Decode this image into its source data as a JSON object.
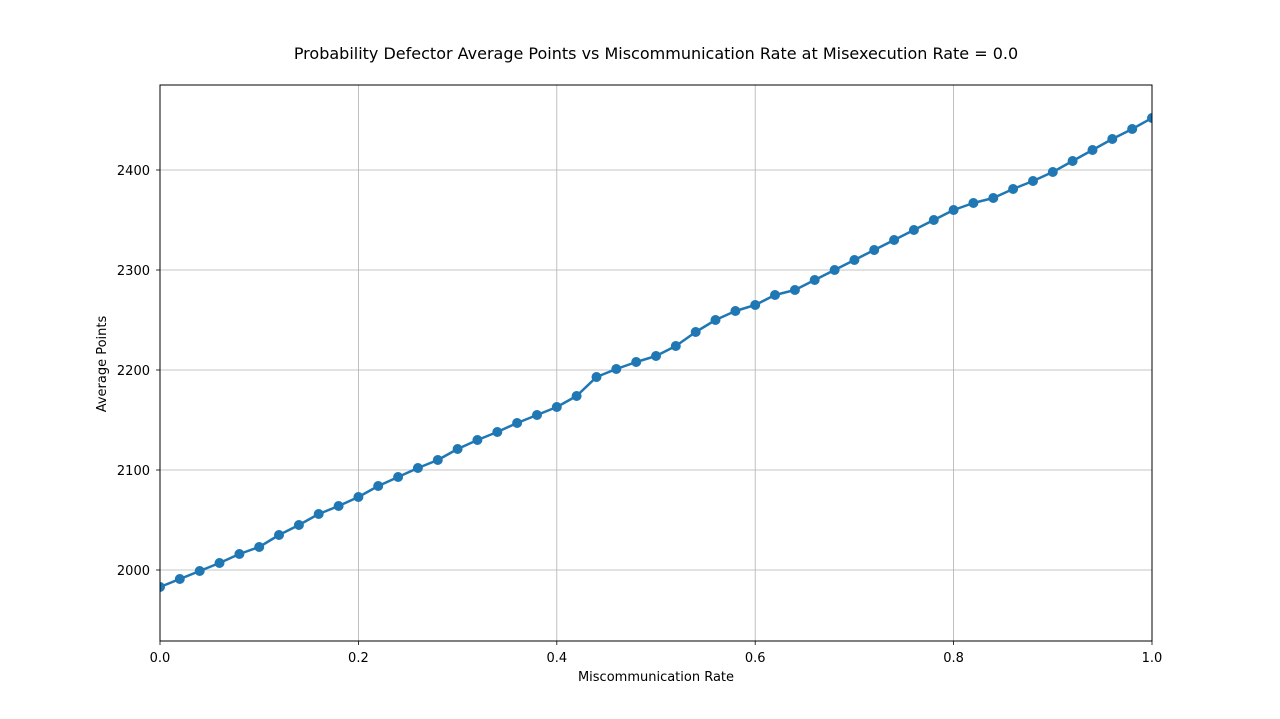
{
  "chart_data": {
    "type": "line",
    "title": "Probability Defector Average Points vs Miscommunication Rate at Misexecution Rate = 0.0",
    "xlabel": "Miscommunication Rate",
    "ylabel": "Average Points",
    "xlim": [
      0.0,
      1.0
    ],
    "ylim": [
      1929,
      2485
    ],
    "xticks": [
      0.0,
      0.2,
      0.4,
      0.6,
      0.8,
      1.0
    ],
    "xtick_labels": [
      "0.0",
      "0.2",
      "0.4",
      "0.6",
      "0.8",
      "1.0"
    ],
    "yticks": [
      2000,
      2100,
      2200,
      2300,
      2400
    ],
    "ytick_labels": [
      "2000",
      "2100",
      "2200",
      "2300",
      "2400"
    ],
    "grid": true,
    "marker": "circle",
    "color": "#1f77b4",
    "series": [
      {
        "x": [
          0.0,
          0.02,
          0.04,
          0.06,
          0.08,
          0.1,
          0.12,
          0.14,
          0.16,
          0.18,
          0.2,
          0.22,
          0.24,
          0.26,
          0.28,
          0.3,
          0.32,
          0.34,
          0.36,
          0.38,
          0.4,
          0.42,
          0.44,
          0.46,
          0.48,
          0.5,
          0.52,
          0.54,
          0.56,
          0.58,
          0.6,
          0.62,
          0.64,
          0.66,
          0.68,
          0.7,
          0.72,
          0.74,
          0.76,
          0.78,
          0.8,
          0.82,
          0.84,
          0.86,
          0.88,
          0.9,
          0.92,
          0.94,
          0.96,
          0.98,
          1.0
        ],
        "values": [
          1983,
          1991,
          1999,
          2007,
          2016,
          2023,
          2035,
          2045,
          2056,
          2064,
          2073,
          2084,
          2093,
          2102,
          2110,
          2121,
          2130,
          2138,
          2147,
          2155,
          2163,
          2174,
          2193,
          2201,
          2208,
          2214,
          2224,
          2238,
          2250,
          2259,
          2265,
          2275,
          2280,
          2290,
          2300,
          2310,
          2320,
          2330,
          2340,
          2350,
          2360,
          2367,
          2372,
          2381,
          2389,
          2398,
          2409,
          2420,
          2431,
          2441,
          2452
        ]
      }
    ]
  }
}
